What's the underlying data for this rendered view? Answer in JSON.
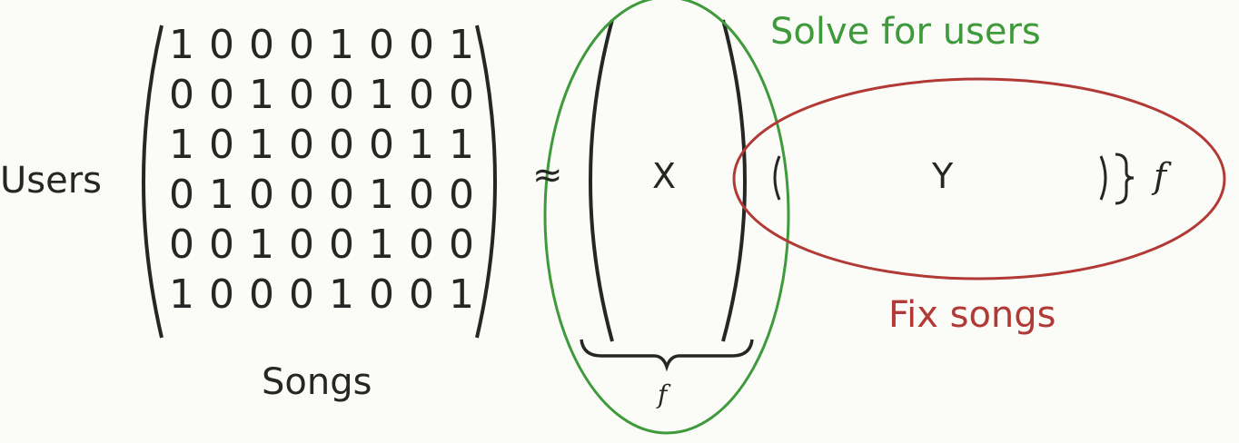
{
  "diagram": {
    "rows_label": "Users",
    "cols_label": "Songs",
    "matrix": [
      [
        "1",
        "0",
        "0",
        "0",
        "1",
        "0",
        "0",
        "1"
      ],
      [
        "0",
        "0",
        "1",
        "0",
        "0",
        "1",
        "0",
        "0"
      ],
      [
        "1",
        "0",
        "1",
        "0",
        "0",
        "0",
        "1",
        "1"
      ],
      [
        "0",
        "1",
        "0",
        "0",
        "0",
        "1",
        "0",
        "0"
      ],
      [
        "0",
        "0",
        "1",
        "0",
        "0",
        "1",
        "0",
        "0"
      ],
      [
        "1",
        "0",
        "0",
        "0",
        "1",
        "0",
        "0",
        "1"
      ]
    ],
    "approx_symbol": "≈",
    "user_factor_symbol": "X",
    "song_factor_symbol": "Y",
    "factor_dim_symbol": "f",
    "solve_annotation": "Solve for users",
    "fix_annotation": "Fix songs",
    "colors": {
      "solve": "#3e9a3a",
      "fix": "#b23a36",
      "ink": "#262626"
    }
  }
}
